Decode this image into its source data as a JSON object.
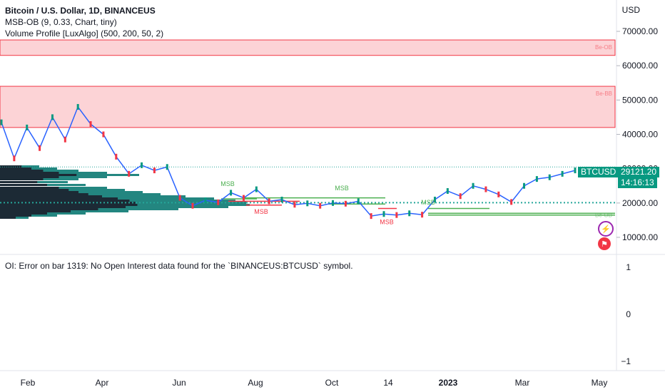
{
  "header": {
    "title": "Bitcoin / U.S. Dollar, 1D, BINANCEUS",
    "indicator1": "MSB-OB (9, 0.33, Chart, tiny)",
    "indicator2": "Volume Profile [LuxAlgo] (500, 200, 50, 2)"
  },
  "currency": "USD",
  "error_text": "OI: Error on bar 1319: No Open Interest data found for the `BINANCEUS:BTCUSD` symbol.",
  "price_tag": {
    "symbol": "BTCUSD",
    "price": "29121.20",
    "countdown": "14:16:13",
    "color": "#089981"
  },
  "colors": {
    "bear_zone": "#f23645",
    "bull": "#4caf50",
    "bear": "#f23645",
    "line": "#2962ff",
    "profile": "#26a69a"
  },
  "chart_data": [
    {
      "type": "line",
      "ylim": [
        0,
        80000
      ],
      "y_ticks": [
        "70000.00",
        "60000.00",
        "50000.00",
        "40000.00",
        "30000.00",
        "20000.00",
        "10000.00"
      ],
      "y_tick_values": [
        70000,
        60000,
        50000,
        40000,
        30000,
        20000,
        10000
      ],
      "x_tick_labels": [
        "Feb",
        "Apr",
        "Jun",
        "Aug",
        "Oct",
        "14",
        "2023",
        "Mar",
        "May"
      ],
      "series": [
        {
          "values": [
            43500,
            33000,
            42000,
            36000,
            45000,
            38500,
            48000,
            43000,
            40000,
            33500,
            28500,
            31000,
            29500,
            30500,
            21500,
            19200,
            20800,
            20200,
            23000,
            21500,
            24000,
            20500,
            21000,
            19500,
            19900,
            19200,
            20000,
            19800,
            20500,
            16200,
            16800,
            16500,
            17000,
            16600,
            21000,
            23500,
            22000,
            25000,
            24000,
            22500,
            20300,
            25000,
            27000,
            27500,
            28500,
            29500
          ]
        }
      ],
      "zones": [
        {
          "label": "Be-OB",
          "from": 63000,
          "to": 67500
        },
        {
          "label": "Be-BB",
          "from": 42000,
          "to": 54000
        }
      ],
      "annotations": [
        {
          "text": "MSB",
          "kind": "bull"
        },
        {
          "text": "MSB",
          "kind": "bear"
        },
        {
          "text": "MSB",
          "kind": "bull"
        },
        {
          "text": "MSB",
          "kind": "bear"
        },
        {
          "text": "MSB",
          "kind": "bull"
        }
      ],
      "bull_zone_label": "Be-OB",
      "current_price": 29121.2
    },
    {
      "type": "line",
      "ylim": [
        -1,
        1
      ],
      "y_ticks": [
        "1",
        "0",
        "−1"
      ],
      "y_tick_values": [
        1,
        0,
        -1
      ]
    }
  ]
}
